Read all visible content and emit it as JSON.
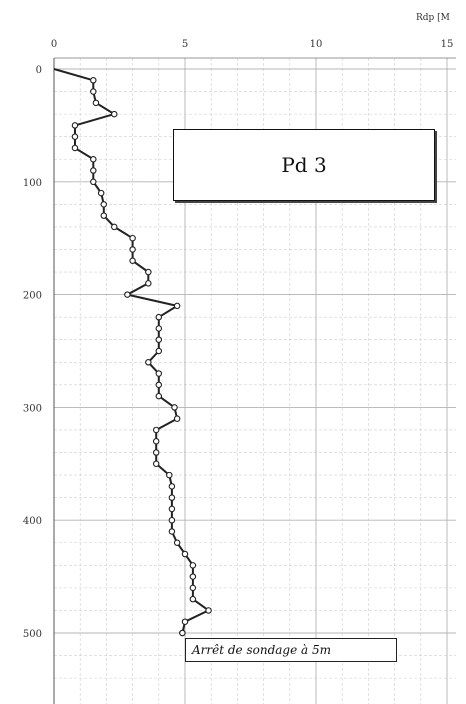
{
  "chart_data": {
    "type": "line",
    "x_axis_unit": "Rdp [M",
    "x_ticks": [
      0,
      5,
      10,
      15
    ],
    "y_ticks": [
      0,
      100,
      200,
      300,
      400,
      500
    ],
    "xlim": [
      0,
      15
    ],
    "ylim": [
      0,
      550
    ],
    "grid": true,
    "series": [
      {
        "x": [
          0.0,
          1.5,
          1.5,
          1.6,
          2.3,
          0.8,
          0.8,
          0.8,
          1.5,
          1.5,
          1.5,
          1.8,
          1.9,
          1.9,
          2.3,
          3.0,
          3.0,
          3.0,
          3.6,
          3.6,
          2.8,
          4.7,
          4.0,
          4.0,
          4.0,
          4.0,
          3.6,
          4.0,
          4.0,
          4.0,
          4.6,
          4.7,
          3.9,
          3.9,
          3.9,
          3.9,
          4.4,
          4.5,
          4.5,
          4.5,
          4.5,
          4.5,
          4.7,
          5.0,
          5.3,
          5.3,
          5.3,
          5.3,
          5.9,
          5.0,
          4.9,
          4.9
        ],
        "y": [
          0,
          10,
          20,
          30,
          40,
          50,
          60,
          70,
          80,
          90,
          100,
          110,
          120,
          130,
          140,
          150,
          160,
          170,
          180,
          190,
          200,
          210,
          220,
          230,
          240,
          250,
          260,
          270,
          280,
          290,
          300,
          310,
          320,
          330,
          340,
          350,
          360,
          370,
          380,
          390,
          400,
          410,
          420,
          430,
          440,
          450,
          460,
          470,
          480,
          490,
          500,
          500
        ]
      }
    ]
  },
  "label_box": {
    "text": "Pd 3"
  },
  "note_box": {
    "text": "Arrêt de sondage à 5m"
  }
}
